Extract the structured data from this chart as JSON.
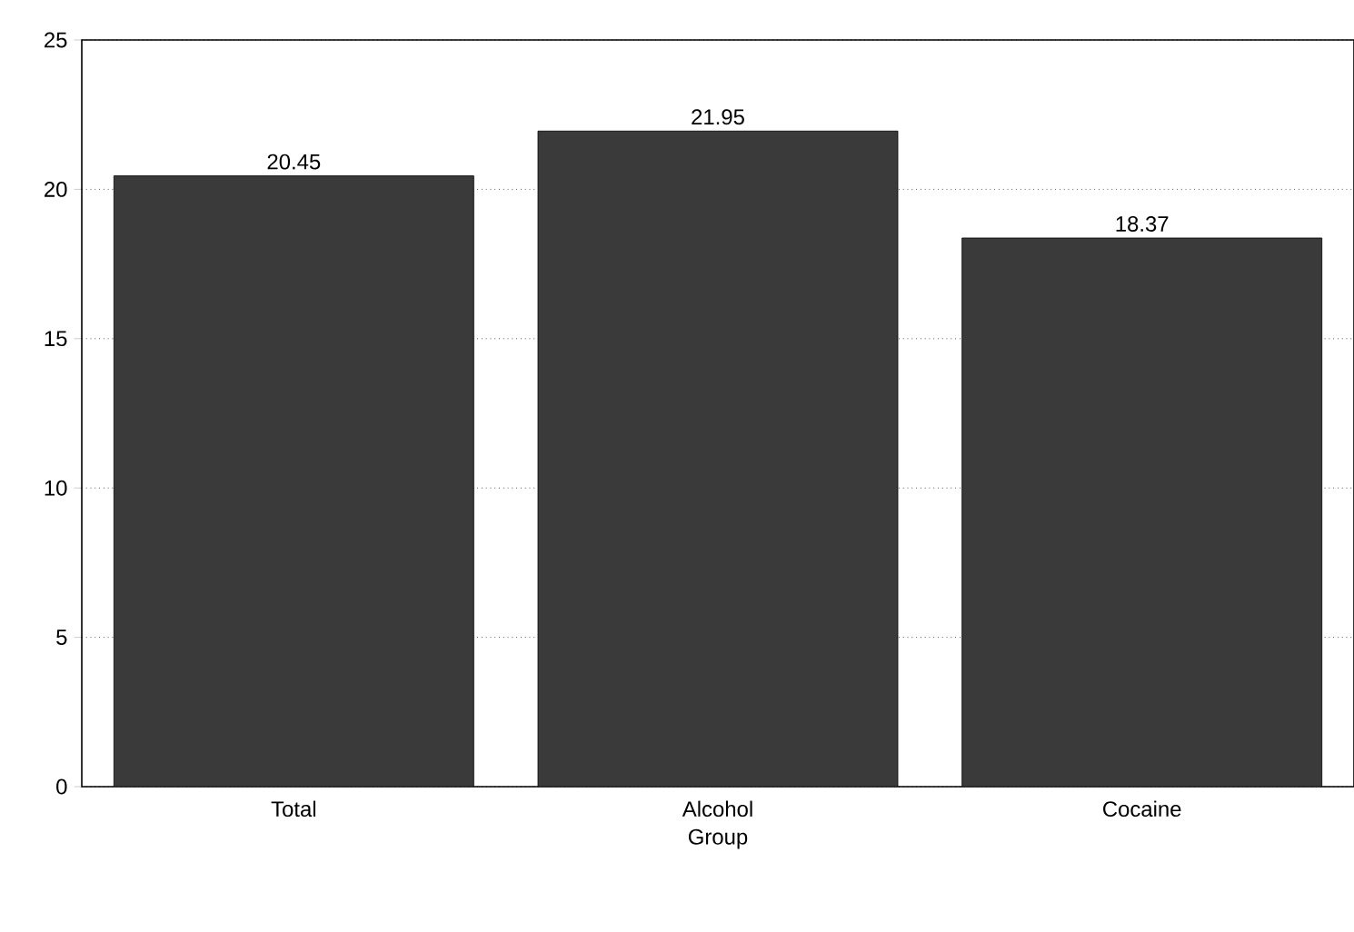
{
  "chart_data": {
    "type": "bar",
    "xlabel": "Group",
    "categories": [
      "Total",
      "Alcohol",
      "Cocaine"
    ],
    "values": [
      20.45,
      21.95,
      18.37
    ],
    "color": "#3a3a3a",
    "ylim": [
      0,
      25
    ],
    "yticks": [
      0,
      5,
      10,
      15,
      20,
      25
    ],
    "grid": "y",
    "data_labels": true
  }
}
